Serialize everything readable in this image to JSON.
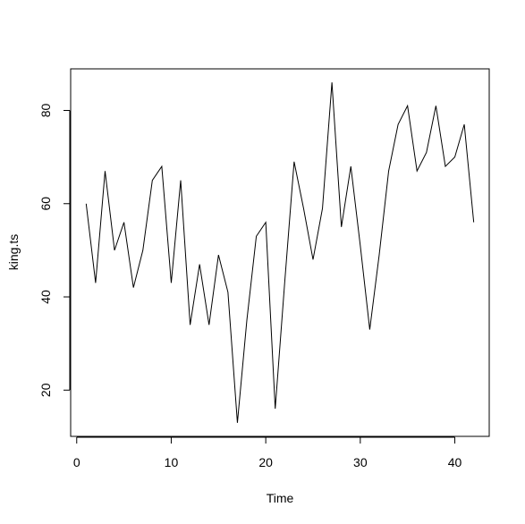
{
  "chart_data": {
    "type": "line",
    "title": "",
    "xlabel": "Time",
    "ylabel": "king.ts",
    "xlim": [
      -0.64,
      43.64
    ],
    "ylim": [
      10.08,
      88.92
    ],
    "x_ticks": [
      0,
      10,
      20,
      30,
      40
    ],
    "x_tick_labels": [
      "0",
      "10",
      "20",
      "30",
      "40"
    ],
    "y_ticks": [
      20,
      40,
      60,
      80
    ],
    "y_tick_labels": [
      "20",
      "40",
      "60",
      "80"
    ],
    "grid": false,
    "legend": "none",
    "line_color": "#000000",
    "x": [
      1,
      2,
      3,
      4,
      5,
      6,
      7,
      8,
      9,
      10,
      11,
      12,
      13,
      14,
      15,
      16,
      17,
      18,
      19,
      20,
      21,
      22,
      23,
      24,
      25,
      26,
      27,
      28,
      29,
      30,
      31,
      32,
      33,
      34,
      35,
      36,
      37,
      38,
      39,
      40,
      41,
      42
    ],
    "values": [
      60,
      43,
      67,
      50,
      56,
      42,
      50,
      65,
      68,
      43,
      65,
      34,
      47,
      34,
      49,
      41,
      13,
      35,
      53,
      56,
      16,
      43,
      69,
      59,
      48,
      59,
      86,
      55,
      68,
      51,
      33,
      49,
      67,
      77,
      81,
      67,
      71,
      81,
      68,
      70,
      77,
      56
    ]
  }
}
